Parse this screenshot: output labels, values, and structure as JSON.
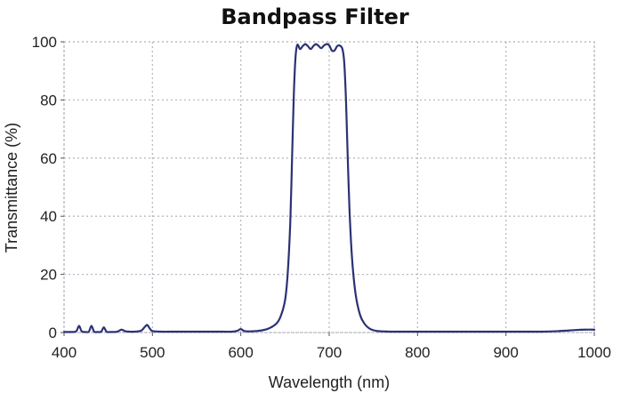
{
  "chart_data": {
    "type": "line",
    "title": "Bandpass Filter",
    "xlabel": "Wavelength (nm)",
    "ylabel": "Transmittance (%)",
    "xlim": [
      400,
      1000
    ],
    "ylim": [
      0,
      100
    ],
    "xticks": [
      400,
      500,
      600,
      700,
      800,
      900,
      1000
    ],
    "yticks": [
      0,
      20,
      40,
      60,
      80,
      100
    ],
    "grid": true,
    "legend": "none",
    "series": [
      {
        "color": "#2b3274",
        "x": [
          400,
          410,
          414,
          417,
          420,
          424,
          428,
          431,
          434,
          438,
          442,
          445,
          448,
          452,
          460,
          465,
          470,
          480,
          487,
          491,
          494,
          497,
          500,
          510,
          520,
          540,
          560,
          580,
          590,
          596,
          600,
          604,
          610,
          620,
          630,
          640,
          645,
          650,
          653,
          656,
          658,
          660,
          662,
          664,
          667,
          670,
          673,
          676,
          679,
          682,
          685,
          688,
          691,
          694,
          697,
          700,
          703,
          706,
          709,
          712,
          715,
          717,
          719,
          721,
          723,
          726,
          730,
          735,
          740,
          745,
          750,
          755,
          760,
          770,
          800,
          850,
          900,
          940,
          960,
          980,
          990,
          1000
        ],
        "y": [
          0.2,
          0.2,
          0.5,
          2.3,
          0.4,
          0.2,
          0.3,
          2.3,
          0.3,
          0.2,
          0.3,
          1.8,
          0.3,
          0.2,
          0.3,
          1.0,
          0.4,
          0.3,
          0.6,
          1.8,
          2.6,
          1.4,
          0.5,
          0.3,
          0.3,
          0.3,
          0.3,
          0.3,
          0.3,
          0.6,
          1.2,
          0.5,
          0.4,
          0.6,
          1.2,
          3.0,
          5.5,
          11.0,
          20.0,
          38.0,
          60.0,
          82.0,
          95.0,
          99.0,
          97.5,
          98.5,
          99.2,
          98.5,
          97.5,
          98.5,
          99.2,
          98.6,
          97.8,
          98.7,
          99.2,
          98.8,
          97.0,
          97.0,
          98.5,
          98.7,
          97.5,
          93.0,
          80.0,
          60.0,
          42.0,
          25.0,
          13.0,
          6.0,
          3.0,
          1.5,
          0.8,
          0.5,
          0.4,
          0.3,
          0.3,
          0.3,
          0.3,
          0.3,
          0.5,
          0.9,
          1.0,
          1.0
        ]
      }
    ]
  }
}
